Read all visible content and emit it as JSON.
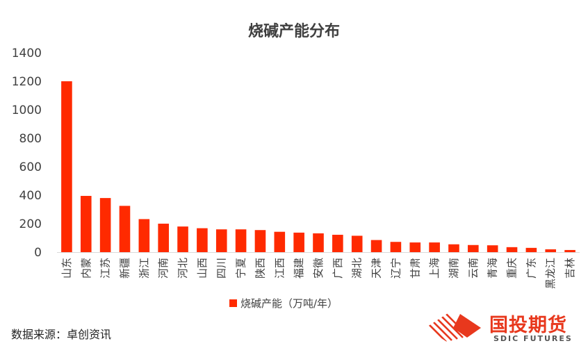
{
  "chart_data": {
    "type": "bar",
    "title": "烧碱产能分布",
    "categories": [
      "山东",
      "内蒙",
      "江苏",
      "新疆",
      "浙江",
      "河南",
      "河北",
      "山西",
      "四川",
      "宁夏",
      "陕西",
      "江西",
      "福建",
      "安徽",
      "广西",
      "湖北",
      "天津",
      "辽宁",
      "甘肃",
      "上海",
      "湖南",
      "云南",
      "青海",
      "重庆",
      "广东",
      "黑龙江",
      "吉林"
    ],
    "series": [
      {
        "name": "烧碱产能（万吨/年）",
        "values": [
          1200,
          395,
          380,
          325,
          232,
          200,
          180,
          168,
          160,
          160,
          155,
          143,
          137,
          132,
          122,
          115,
          85,
          72,
          68,
          68,
          55,
          50,
          48,
          35,
          30,
          20,
          15
        ]
      }
    ],
    "ylim": [
      0,
      1400
    ],
    "yticks": [
      0,
      200,
      400,
      600,
      800,
      1000,
      1200,
      1400
    ],
    "legend_position": "bottom",
    "grid": false,
    "colors": {
      "bar": "#ff2a00"
    }
  },
  "footer": {
    "source": "数据来源：卓创资讯"
  },
  "logo": {
    "cn": "国投期货",
    "en": "SDIC FUTURES"
  }
}
